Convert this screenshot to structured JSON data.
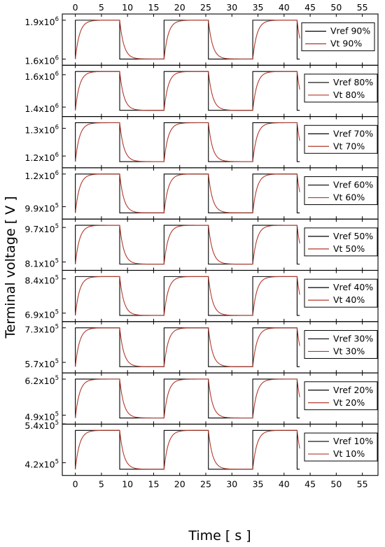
{
  "chart_data": {
    "type": "line",
    "xlabel": "Time [ s ]",
    "ylabel": "Terminal voltage [ V ]",
    "xlim": [
      -2.5,
      58
    ],
    "x_ticks": [
      0,
      5,
      10,
      15,
      20,
      25,
      30,
      35,
      40,
      45,
      50,
      55
    ],
    "x_tick_labels": [
      "0",
      "5",
      "10",
      "15",
      "20",
      "25",
      "30",
      "35",
      "40",
      "45",
      "50",
      "55"
    ],
    "grid": false,
    "legend_position": "right",
    "waveform": {
      "switch_times": [
        0,
        8.5,
        17,
        25.5,
        34,
        42.5
      ],
      "end_time": 43,
      "shape": "square wave starting high, period 17 s",
      "vt_time_constant_s": 0.8
    },
    "panels": [
      {
        "legend": [
          "Vref 90%",
          "Vt 90%"
        ],
        "high": 1900000,
        "low": 1600000,
        "yticks": [
          {
            "value": 1900000,
            "mant": "1.9",
            "exp": "6"
          },
          {
            "value": 1600000,
            "mant": "1.6",
            "exp": "6"
          }
        ]
      },
      {
        "legend": [
          "Vref 80%",
          "Vt 80%"
        ],
        "high": 1620000,
        "low": 1380000,
        "yticks": [
          {
            "value": 1600000,
            "mant": "1.6",
            "exp": "6"
          },
          {
            "value": 1400000,
            "mant": "1.4",
            "exp": "6"
          }
        ]
      },
      {
        "legend": [
          "Vref 70%",
          "Vt 70%"
        ],
        "high": 1320000,
        "low": 1180000,
        "yticks": [
          {
            "value": 1300000,
            "mant": "1.3",
            "exp": "6"
          },
          {
            "value": 1200000,
            "mant": "1.2",
            "exp": "6"
          }
        ]
      },
      {
        "legend": [
          "Vref 60%",
          "Vt 60%"
        ],
        "high": 1200000,
        "low": 950000,
        "yticks": [
          {
            "value": 1200000,
            "mant": "1.2",
            "exp": "6"
          },
          {
            "value": 990000,
            "mant": "9.9",
            "exp": "5"
          }
        ]
      },
      {
        "legend": [
          "Vref 50%",
          "Vt 50%"
        ],
        "high": 980000,
        "low": 800000,
        "yticks": [
          {
            "value": 970000,
            "mant": "9.7",
            "exp": "5"
          },
          {
            "value": 810000,
            "mant": "8.1",
            "exp": "5"
          }
        ]
      },
      {
        "legend": [
          "Vref 40%",
          "Vt 40%"
        ],
        "high": 850000,
        "low": 680000,
        "yticks": [
          {
            "value": 840000,
            "mant": "8.4",
            "exp": "5"
          },
          {
            "value": 690000,
            "mant": "6.9",
            "exp": "5"
          }
        ]
      },
      {
        "legend": [
          "Vref 30%",
          "Vt 30%"
        ],
        "high": 730000,
        "low": 550000,
        "yticks": [
          {
            "value": 730000,
            "mant": "7.3",
            "exp": "5"
          },
          {
            "value": 570000,
            "mant": "5.7",
            "exp": "5"
          }
        ]
      },
      {
        "legend": [
          "Vref 20%",
          "Vt 20%"
        ],
        "high": 620000,
        "low": 480000,
        "yticks": [
          {
            "value": 620000,
            "mant": "6.2",
            "exp": "5"
          },
          {
            "value": 490000,
            "mant": "4.9",
            "exp": "5"
          }
        ]
      },
      {
        "legend": [
          "Vref 10%",
          "Vt 10%"
        ],
        "high": 520000,
        "low": 400000,
        "yticks": [
          {
            "value": 540000,
            "mant": "5.4",
            "exp": "5"
          },
          {
            "value": 420000,
            "mant": "4.2",
            "exp": "5"
          }
        ]
      }
    ]
  },
  "colors": {
    "vref": "#000000",
    "vt": "#b0392b",
    "axis": "#000000",
    "background": "#ffffff"
  }
}
